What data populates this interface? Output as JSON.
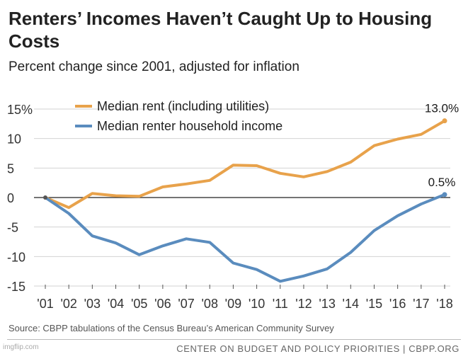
{
  "header": {
    "title": "Renters’ Incomes Haven’t Caught Up to Housing Costs",
    "subtitle": "Percent change since 2001, adjusted for inflation"
  },
  "source": "Source: CBPP tabulations of the Census Bureau’s American Community Survey",
  "footer": "CENTER ON BUDGET AND POLICY PRIORITIES | CBPP.ORG",
  "watermark": "imgflip.com",
  "chart_data": {
    "type": "line",
    "title": "Renters’ Incomes Haven’t Caught Up to Housing Costs",
    "subtitle": "Percent change since 2001, adjusted for inflation",
    "categories": [
      "'01",
      "'02",
      "'03",
      "'04",
      "'05",
      "'06",
      "'07",
      "'08",
      "'09",
      "'10",
      "'11",
      "'12",
      "'13",
      "'14",
      "'15",
      "'16",
      "'17",
      "'18"
    ],
    "ylim": [
      -15,
      15
    ],
    "yticks": [
      15,
      10,
      5,
      0,
      -5,
      -10,
      -15
    ],
    "ytick_labels": [
      "15%",
      "10",
      "5",
      "0",
      "-5",
      "-10",
      "-15"
    ],
    "grid": true,
    "legend_position": "top-left",
    "series": [
      {
        "name": "Median rent (including utilities)",
        "color": "#E8A24B",
        "values": [
          0,
          -1.7,
          0.7,
          0.3,
          0.2,
          1.8,
          2.3,
          2.9,
          5.5,
          5.4,
          4.1,
          3.5,
          4.4,
          6.0,
          8.8,
          9.9,
          10.7,
          13.0
        ],
        "end_label": "13.0%"
      },
      {
        "name": "Median renter household income",
        "color": "#5A8CBE",
        "values": [
          0,
          -2.7,
          -6.5,
          -7.7,
          -9.7,
          -8.2,
          -7.0,
          -7.6,
          -11.1,
          -12.2,
          -14.2,
          -13.3,
          -12.1,
          -9.3,
          -5.6,
          -3.1,
          -1.1,
          0.5
        ],
        "end_label": "0.5%"
      }
    ]
  }
}
